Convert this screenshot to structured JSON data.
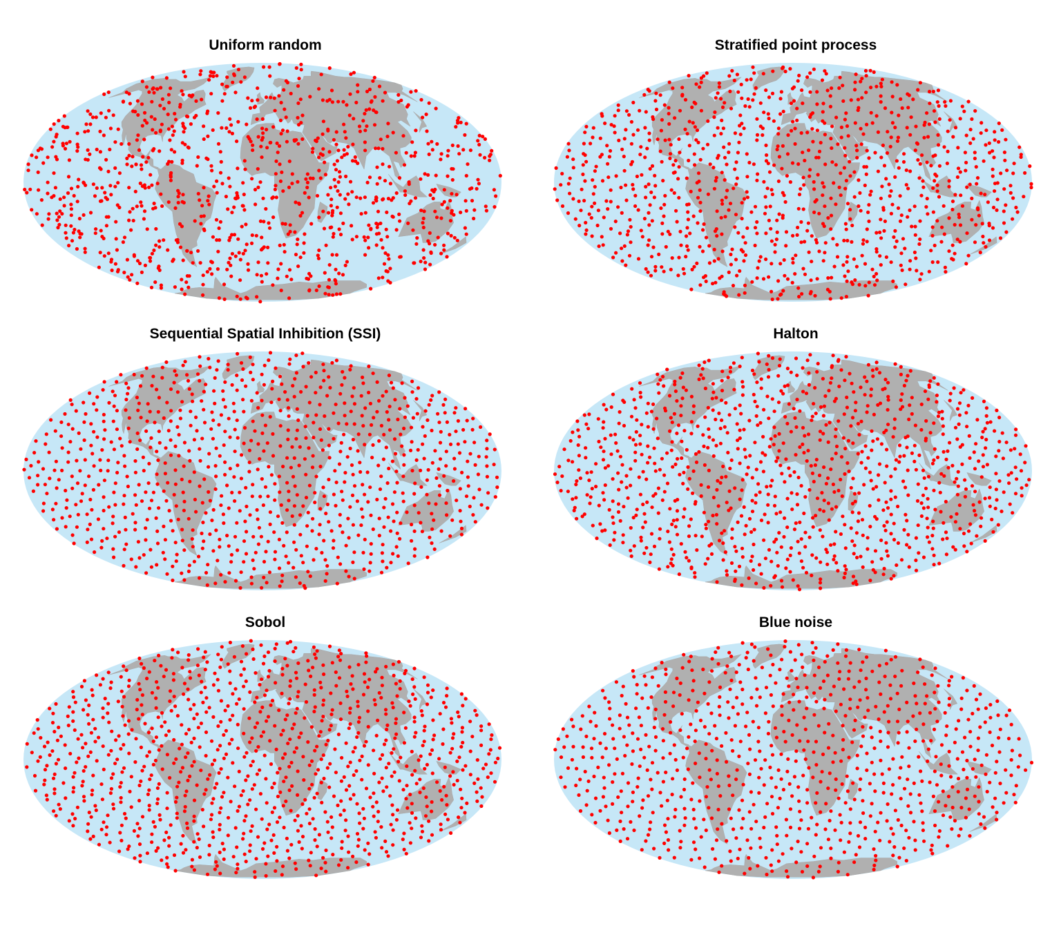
{
  "figure": {
    "panels": [
      {
        "id": "uniform",
        "title": "Uniform random",
        "method": "uniform_random",
        "point_count": 1000
      },
      {
        "id": "stratified",
        "title": "Stratified point process",
        "method": "stratified",
        "point_count": 1000
      },
      {
        "id": "ssi",
        "title": "Sequential Spatial Inhibition (SSI)",
        "method": "ssi",
        "point_count": 1000
      },
      {
        "id": "halton",
        "title": "Halton",
        "method": "halton",
        "point_count": 1000
      },
      {
        "id": "sobol",
        "title": "Sobol",
        "method": "sobol",
        "point_count": 1000
      },
      {
        "id": "bluenoise",
        "title": "Blue noise",
        "method": "blue_noise",
        "point_count": 1000
      }
    ]
  },
  "map": {
    "projection": "Mollweide",
    "colors": {
      "ocean": "#c6e7f7",
      "land": "#b0b0b0",
      "points": "#ff0000"
    }
  }
}
